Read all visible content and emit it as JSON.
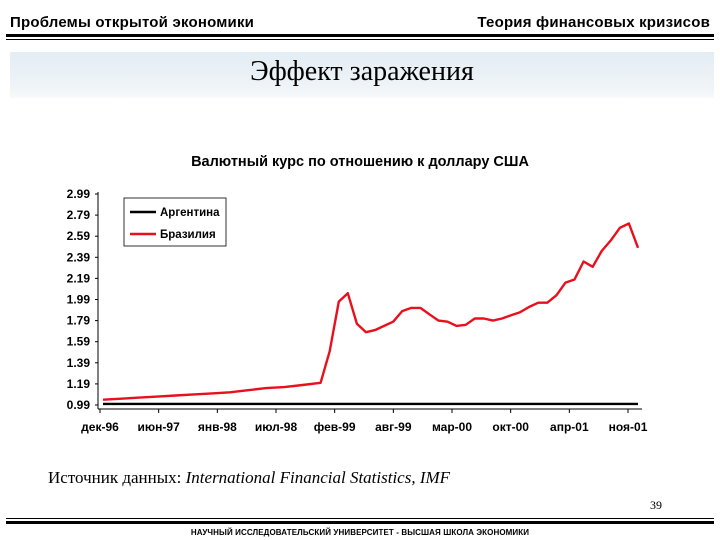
{
  "header": {
    "left": "Проблемы открытой экономики",
    "right": "Теория финансовых кризисов"
  },
  "slide": {
    "title": "Эффект заражения",
    "source_prefix": "Источник данных: ",
    "source_name": "International Financial Statistics, IMF",
    "page_number": "39",
    "footer": "НАУЧНЫЙ ИССЛЕДОВАТЕЛЬСКИЙ УНИВЕРСИТЕТ - ВЫСШАЯ ШКОЛА ЭКОНОМИКИ"
  },
  "chart_data": {
    "type": "line",
    "title": "Валютный курс по отношению к доллару США",
    "xlabel": "",
    "ylabel": "",
    "x_range": [
      "1996-12",
      "2001-11"
    ],
    "x_ticks": [
      "дек-96",
      "июн-97",
      "янв-98",
      "июл-98",
      "фев-99",
      "авг-99",
      "мар-00",
      "окт-00",
      "апр-01",
      "ноя-01"
    ],
    "ylim": [
      0.99,
      2.99
    ],
    "y_ticks": [
      "0.99",
      "1.19",
      "1.39",
      "1.59",
      "1.79",
      "1.99",
      "2.19",
      "2.39",
      "2.59",
      "2.79",
      "2.99"
    ],
    "grid": false,
    "legend_position": "top-left",
    "series": [
      {
        "name": "Аргентина",
        "color": "#000000",
        "points": [
          [
            "1996-12",
            1.0
          ],
          [
            "2001-11",
            1.0
          ]
        ]
      },
      {
        "name": "Бразилия",
        "color": "#e8101c",
        "points": [
          [
            "1996-12",
            1.04
          ],
          [
            "1997-02",
            1.05
          ],
          [
            "1997-04",
            1.06
          ],
          [
            "1997-06",
            1.07
          ],
          [
            "1997-08",
            1.08
          ],
          [
            "1997-10",
            1.09
          ],
          [
            "1997-12",
            1.1
          ],
          [
            "1998-02",
            1.11
          ],
          [
            "1998-04",
            1.13
          ],
          [
            "1998-06",
            1.15
          ],
          [
            "1998-08",
            1.16
          ],
          [
            "1998-10",
            1.18
          ],
          [
            "1998-12",
            1.2
          ],
          [
            "1999-01",
            1.5
          ],
          [
            "1999-02",
            1.97
          ],
          [
            "1999-03",
            2.05
          ],
          [
            "1999-04",
            1.76
          ],
          [
            "1999-05",
            1.68
          ],
          [
            "1999-06",
            1.7
          ],
          [
            "1999-07",
            1.74
          ],
          [
            "1999-08",
            1.78
          ],
          [
            "1999-09",
            1.88
          ],
          [
            "1999-10",
            1.91
          ],
          [
            "1999-11",
            1.91
          ],
          [
            "1999-12",
            1.85
          ],
          [
            "2000-01",
            1.79
          ],
          [
            "2000-02",
            1.78
          ],
          [
            "2000-03",
            1.74
          ],
          [
            "2000-04",
            1.75
          ],
          [
            "2000-05",
            1.81
          ],
          [
            "2000-06",
            1.81
          ],
          [
            "2000-07",
            1.79
          ],
          [
            "2000-08",
            1.81
          ],
          [
            "2000-09",
            1.84
          ],
          [
            "2000-10",
            1.87
          ],
          [
            "2000-11",
            1.92
          ],
          [
            "2000-12",
            1.96
          ],
          [
            "2001-01",
            1.96
          ],
          [
            "2001-02",
            2.03
          ],
          [
            "2001-03",
            2.15
          ],
          [
            "2001-04",
            2.18
          ],
          [
            "2001-05",
            2.35
          ],
          [
            "2001-06",
            2.3
          ],
          [
            "2001-07",
            2.45
          ],
          [
            "2001-08",
            2.55
          ],
          [
            "2001-09",
            2.67
          ],
          [
            "2001-10",
            2.71
          ],
          [
            "2001-11",
            2.48
          ]
        ]
      }
    ]
  }
}
